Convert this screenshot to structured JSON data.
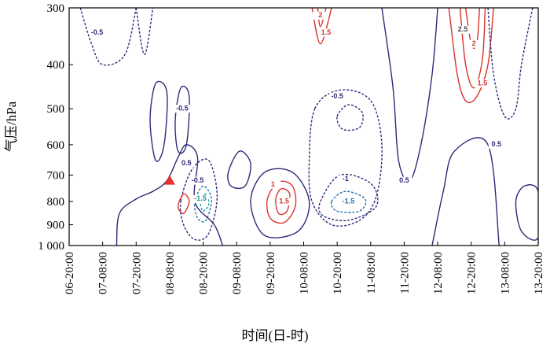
{
  "chart_data": {
    "type": "contour",
    "y_label": "气压/hPa",
    "x_label": "时间(日-时)",
    "xlim": [
      0,
      168
    ],
    "ylim": [
      1000,
      300
    ],
    "log_y": true,
    "xticks": [
      {
        "value": 0,
        "label": "06-20:00"
      },
      {
        "value": 12,
        "label": "07-08:00"
      },
      {
        "value": 24,
        "label": "07-20:00"
      },
      {
        "value": 36,
        "label": "08-08:00"
      },
      {
        "value": 48,
        "label": "08-20:00"
      },
      {
        "value": 60,
        "label": "09-08:00"
      },
      {
        "value": 72,
        "label": "09-20:00"
      },
      {
        "value": 84,
        "label": "10-08:00"
      },
      {
        "value": 96,
        "label": "10-20:00"
      },
      {
        "value": 108,
        "label": "11-08:00"
      },
      {
        "value": 120,
        "label": "11-20:00"
      },
      {
        "value": 132,
        "label": "12-08:00"
      },
      {
        "value": 144,
        "label": "12-20:00"
      },
      {
        "value": 156,
        "label": "13-08:00"
      },
      {
        "value": 168,
        "label": "13-20:00"
      }
    ],
    "yticks": [
      300,
      400,
      500,
      600,
      700,
      800,
      900,
      {
        "value": 1000,
        "label": "1 000"
      }
    ],
    "contours": [
      {
        "level": -0.5,
        "color": "#2e2a78",
        "closed": true,
        "x": [
          88,
          97,
          108,
          112,
          110,
          104,
          94,
          87,
          86
        ],
        "y": [
          500,
          455,
          480,
          600,
          780,
          880,
          900,
          800,
          650
        ]
      },
      {
        "level": -1,
        "color": "#2e2a78",
        "closed": true,
        "x": [
          96,
          100,
          105,
          104,
          98
        ],
        "y": [
          520,
          490,
          510,
          550,
          555
        ]
      },
      {
        "level": -1,
        "color": "#2e2a78",
        "closed": true,
        "x": [
          90,
          97,
          108,
          110,
          100,
          91
        ],
        "y": [
          800,
          700,
          730,
          820,
          880,
          860
        ]
      },
      {
        "level": -1.5,
        "color": "#1f6fb0",
        "closed": true,
        "x": [
          94,
          99,
          106,
          104,
          96
        ],
        "y": [
          800,
          760,
          790,
          840,
          840
        ]
      },
      {
        "level": 0.5,
        "color": "#2e2a78",
        "closed": true,
        "x": [
          65,
          70,
          80,
          86,
          82,
          70
        ],
        "y": [
          800,
          690,
          690,
          800,
          930,
          950
        ]
      },
      {
        "level": 1,
        "color": "#d9332b",
        "closed": true,
        "x": [
          71,
          75,
          80,
          81,
          77,
          72
        ],
        "y": [
          790,
          725,
          740,
          820,
          890,
          870
        ]
      },
      {
        "level": 1.5,
        "color": "#d9332b",
        "closed": true,
        "x": [
          74,
          76,
          79,
          78,
          75
        ],
        "y": [
          790,
          750,
          770,
          840,
          850
        ]
      },
      {
        "level": 1,
        "color": "#d9332b",
        "closed": false,
        "x": [
          136,
          139,
          142,
          146,
          150,
          152
        ],
        "y": [
          300,
          420,
          480,
          470,
          400,
          300
        ]
      },
      {
        "level": 1.5,
        "color": "#d9332b",
        "closed": false,
        "x": [
          140,
          142,
          145,
          148,
          149
        ],
        "y": [
          300,
          400,
          450,
          390,
          300
        ]
      },
      {
        "level": 2,
        "color": "#d9332b",
        "closed": false,
        "x": [
          142,
          144,
          146,
          147
        ],
        "y": [
          300,
          360,
          360,
          300
        ]
      },
      {
        "level": 1.5,
        "color": "#d9332b",
        "closed": false,
        "x": [
          87,
          90,
          94
        ],
        "y": [
          300,
          360,
          300
        ]
      },
      {
        "level": 2,
        "color": "#d9332b",
        "closed": false,
        "x": [
          89,
          90,
          92
        ],
        "y": [
          300,
          330,
          300
        ]
      },
      {
        "level": -0.5,
        "color": "#2e2a78",
        "closed": true,
        "x": [
          40,
          44,
          50,
          53,
          50,
          45,
          41
        ],
        "y": [
          800,
          680,
          650,
          780,
          940,
          970,
          900
        ]
      },
      {
        "level": -1,
        "color": "#1f6fb0",
        "closed": true,
        "x": [
          45,
          48,
          51,
          49,
          46
        ],
        "y": [
          800,
          740,
          790,
          880,
          870
        ]
      },
      {
        "level": -1.5,
        "color": "#1a9a9a",
        "closed": true,
        "x": [
          47,
          49,
          50,
          48
        ],
        "y": [
          800,
          770,
          810,
          840
        ]
      },
      {
        "level": 1,
        "color": "#d9332b",
        "closed": true,
        "x": [
          39,
          41,
          43,
          41
        ],
        "y": [
          820,
          770,
          800,
          850
        ]
      },
      {
        "level": 0.5,
        "color": "#2e2a78",
        "closed": true,
        "x": [
          29,
          31,
          35,
          34,
          31
        ],
        "y": [
          530,
          440,
          460,
          600,
          650
        ]
      },
      {
        "level": 0.5,
        "color": "#2e2a78",
        "closed": true,
        "x": [
          38,
          40,
          43,
          42,
          39
        ],
        "y": [
          530,
          450,
          470,
          600,
          620
        ]
      },
      {
        "level": 0.5,
        "color": "#2e2a78",
        "closed": true,
        "x": [
          57,
          61,
          65,
          63,
          58
        ],
        "y": [
          690,
          620,
          660,
          740,
          740
        ]
      },
      {
        "level": -0.5,
        "color": "#2e2a78",
        "closed": false,
        "x": [
          4,
          8,
          12,
          20,
          24
        ],
        "y": [
          300,
          360,
          400,
          380,
          300
        ]
      },
      {
        "level": -0.5,
        "color": "#2e2a78",
        "closed": false,
        "x": [
          24,
          27,
          30
        ],
        "y": [
          300,
          380,
          300
        ]
      },
      {
        "level": 0.5,
        "color": "#2e2a78",
        "closed": true,
        "x": [
          160,
          163,
          168,
          168,
          162
        ],
        "y": [
          800,
          740,
          760,
          960,
          930
        ]
      },
      {
        "level": 0.5,
        "color": "#2e2a78",
        "closed": false,
        "x": [
          17,
          18,
          24,
          30,
          35,
          39,
          42,
          46,
          45,
          52,
          55
        ],
        "y": [
          1000,
          850,
          790,
          760,
          720,
          640,
          600,
          640,
          800,
          900,
          1000
        ]
      },
      {
        "level": -0.5,
        "color": "#2e2a78",
        "closed": false,
        "x": [
          150,
          152,
          156,
          160,
          162,
          166
        ],
        "y": [
          300,
          420,
          520,
          500,
          400,
          300
        ]
      },
      {
        "level": 0.5,
        "color": "#2e2a78",
        "closed": false,
        "x": [
          112,
          116,
          118,
          122,
          126,
          130,
          132
        ],
        "y": [
          300,
          450,
          650,
          720,
          600,
          420,
          300
        ]
      },
      {
        "level": 0.5,
        "color": "#2e2a78",
        "closed": false,
        "x": [
          130,
          134,
          138,
          150,
          154
        ],
        "y": [
          1000,
          760,
          620,
          600,
          1000
        ]
      }
    ],
    "labels": [
      {
        "value": -0.5,
        "x": 10,
        "y": 340,
        "color": "#2e2a78"
      },
      {
        "value": -0.5,
        "x": 40.5,
        "y": 500,
        "color": "#2e2a78"
      },
      {
        "value": 0.5,
        "x": 42,
        "y": 660,
        "color": "#2e2a78"
      },
      {
        "value": -0.5,
        "x": 46,
        "y": 720,
        "color": "#2e2a78"
      },
      {
        "value": -1.5,
        "x": 47,
        "y": 790,
        "color": "#1a9a9a"
      },
      {
        "value": 1,
        "x": 73,
        "y": 735,
        "color": "#d9332b"
      },
      {
        "value": 1.5,
        "x": 77,
        "y": 800,
        "color": "#d9332b"
      },
      {
        "value": -0.5,
        "x": 96,
        "y": 470,
        "color": "#2e2a78"
      },
      {
        "value": -1,
        "x": 99,
        "y": 715,
        "color": "#2e2a78"
      },
      {
        "value": -1.5,
        "x": 100,
        "y": 800,
        "color": "#1f6fb0"
      },
      {
        "value": 0.5,
        "x": 120,
        "y": 720,
        "color": "#2e2a78"
      },
      {
        "value": 0.5,
        "x": 153,
        "y": 600,
        "color": "#2e2a78"
      },
      {
        "value": 2,
        "x": 145,
        "y": 360,
        "color": "#d9332b"
      },
      {
        "value": 1.5,
        "x": 148,
        "y": 440,
        "color": "#d9332b"
      },
      {
        "value": 2.5,
        "x": 141,
        "y": 335,
        "color": "#444444"
      },
      {
        "value": 1.5,
        "x": 92,
        "y": 340,
        "color": "#d9332b"
      },
      {
        "value": 2,
        "x": 90,
        "y": 312,
        "color": "#d9332b"
      }
    ],
    "marker": {
      "x": 36,
      "y": 720,
      "color": "#e8312a"
    }
  }
}
